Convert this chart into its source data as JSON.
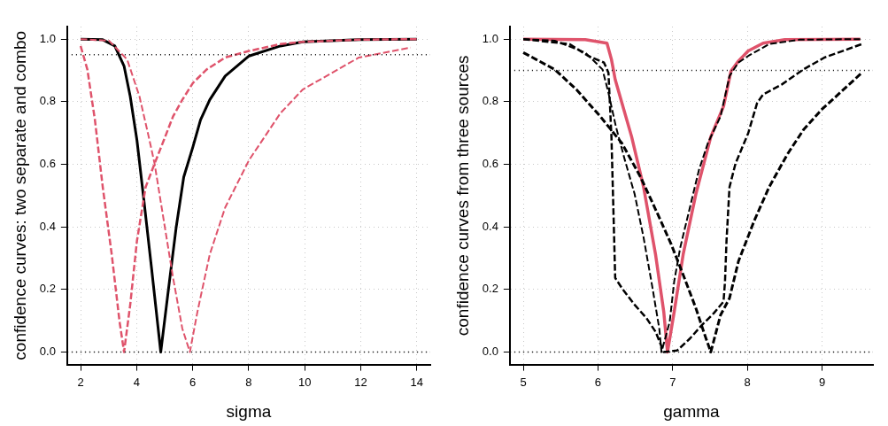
{
  "chart_data": [
    {
      "type": "line",
      "xlabel": "sigma",
      "ylabel": "confidence curves: two separate and combo",
      "xlim": [
        1.52,
        14.48
      ],
      "ylim": [
        -0.04,
        1.04
      ],
      "xticks": [
        2,
        4,
        6,
        8,
        10,
        12,
        14
      ],
      "yticks": [
        {
          "value": 0,
          "label": "0.0"
        },
        {
          "value": 0.2,
          "label": "0.2"
        },
        {
          "value": 0.4,
          "label": "0.4"
        },
        {
          "value": 0.6,
          "label": "0.6"
        },
        {
          "value": 0.8,
          "label": "0.8"
        },
        {
          "value": 1,
          "label": "1.0"
        }
      ],
      "grid": true,
      "ref_lines": [
        {
          "axis": "y",
          "value": 0.95,
          "color": "#000000",
          "line_style": "dotted"
        },
        {
          "axis": "y",
          "value": 0,
          "color": "#000000",
          "line_style": "dotted"
        }
      ],
      "series": [
        {
          "color": "#000000",
          "line_style": "solid",
          "x": [
            2,
            2.79,
            3.22,
            3.55,
            3.77,
            4.01,
            4.26,
            4.53,
            4.86,
            5.14,
            5.41,
            5.68,
            6.01,
            6.28,
            6.61,
            7.16,
            8.01,
            9.13,
            9.93,
            11.93,
            14
          ],
          "values": [
            1,
            0.998,
            0.978,
            0.914,
            0.817,
            0.677,
            0.484,
            0.269,
            0,
            0.204,
            0.398,
            0.559,
            0.656,
            0.742,
            0.806,
            0.882,
            0.946,
            0.978,
            0.991,
            0.998,
            1
          ]
        },
        {
          "color": "#df536b",
          "line_style": "dashed",
          "x": [
            2,
            2.24,
            2.51,
            2.79,
            3.11,
            3.39,
            3.55,
            3.77,
            4.01,
            4.32,
            4.64,
            4.97,
            5.3,
            5.63,
            6.01,
            6.5,
            7.16,
            8.01,
            9.13,
            9.93,
            11.93,
            14
          ],
          "values": [
            0.978,
            0.903,
            0.742,
            0.527,
            0.312,
            0.097,
            0,
            0.151,
            0.355,
            0.527,
            0.602,
            0.677,
            0.753,
            0.806,
            0.86,
            0.903,
            0.941,
            0.962,
            0.984,
            0.991,
            0.998,
            1
          ]
        },
        {
          "color": "#df536b",
          "line_style": "dashed",
          "x": [
            2,
            3.01,
            3.66,
            4.1,
            4.43,
            4.64,
            4.97,
            5.3,
            5.63,
            5.9,
            6.17,
            6.61,
            7.16,
            8.01,
            9.13,
            9.93,
            11.93,
            13.78
          ],
          "values": [
            1,
            0.995,
            0.935,
            0.817,
            0.688,
            0.602,
            0.419,
            0.237,
            0.075,
            0,
            0.129,
            0.312,
            0.462,
            0.613,
            0.763,
            0.839,
            0.941,
            0.973
          ]
        }
      ]
    },
    {
      "type": "line",
      "xlabel": "gamma",
      "ylabel": "confidence curves from three sources",
      "xlim": [
        4.82,
        9.68
      ],
      "ylim": [
        -0.04,
        1.04
      ],
      "xticks": [
        5,
        6,
        7,
        8,
        9
      ],
      "yticks": [
        {
          "value": 0,
          "label": "0.0"
        },
        {
          "value": 0.2,
          "label": "0.2"
        },
        {
          "value": 0.4,
          "label": "0.4"
        },
        {
          "value": 0.6,
          "label": "0.6"
        },
        {
          "value": 0.8,
          "label": "0.8"
        },
        {
          "value": 1,
          "label": "1.0"
        }
      ],
      "grid": true,
      "ref_lines": [
        {
          "axis": "y",
          "value": 0.9,
          "color": "#000000",
          "line_style": "dotted"
        },
        {
          "axis": "y",
          "value": 0,
          "color": "#000000",
          "line_style": "dotted"
        }
      ],
      "series": [
        {
          "color": "#df536b",
          "line_style": "solid",
          "x": [
            5,
            5.83,
            6.12,
            6.18,
            6.23,
            6.32,
            6.45,
            6.61,
            6.77,
            6.88,
            6.93,
            7.02,
            7.14,
            7.31,
            7.51,
            7.68,
            7.78,
            7.88,
            8.01,
            8.21,
            8.5,
            9.51
          ],
          "values": [
            1,
            0.998,
            0.987,
            0.935,
            0.871,
            0.796,
            0.688,
            0.527,
            0.312,
            0.129,
            0,
            0.129,
            0.312,
            0.505,
            0.688,
            0.785,
            0.898,
            0.93,
            0.962,
            0.987,
            0.998,
            1
          ]
        },
        {
          "color": "#000000",
          "line_style": "dashed",
          "x": [
            5,
            5.42,
            5.71,
            6.03,
            6.32,
            6.57,
            6.82,
            6.98,
            7.14,
            7.31,
            7.43,
            7.51,
            7.64,
            7.76,
            7.88,
            8.09,
            8.29,
            8.54,
            8.75,
            8.99,
            9.53
          ],
          "values": [
            0.957,
            0.903,
            0.839,
            0.753,
            0.667,
            0.559,
            0.43,
            0.344,
            0.247,
            0.14,
            0.054,
            0,
            0.118,
            0.172,
            0.29,
            0.419,
            0.527,
            0.634,
            0.71,
            0.774,
            0.892
          ]
        },
        {
          "color": "#000000",
          "line_style": "dashed",
          "x": [
            5,
            5.62,
            5.87,
            6.08,
            6.14,
            6.18,
            6.21,
            6.23,
            6.32,
            6.49,
            6.65,
            6.77,
            6.88,
            7.06,
            7.23,
            7.39,
            7.55,
            7.68,
            7.7,
            7.72,
            7.76,
            7.84,
            8.01,
            8.13,
            8.21,
            8.46,
            8.75,
            9.03,
            9.53
          ],
          "values": [
            1,
            0.984,
            0.946,
            0.925,
            0.892,
            0.688,
            0.419,
            0.237,
            0.204,
            0.151,
            0.108,
            0.065,
            0,
            0.005,
            0.043,
            0.086,
            0.124,
            0.161,
            0.226,
            0.355,
            0.527,
            0.602,
            0.699,
            0.796,
            0.823,
            0.855,
            0.903,
            0.941,
            0.984
          ]
        },
        {
          "color": "#000000",
          "line_style": "dashed",
          "x": [
            5,
            5.42,
            5.83,
            6.06,
            6.14,
            6.24,
            6.36,
            6.49,
            6.61,
            6.73,
            6.82,
            6.85,
            6.96,
            7.02,
            7.1,
            7.23,
            7.35,
            7.47,
            7.64,
            7.76,
            7.88,
            8.01,
            8.29,
            8.7,
            9.51
          ],
          "values": [
            1,
            0.995,
            0.957,
            0.903,
            0.828,
            0.72,
            0.613,
            0.505,
            0.366,
            0.204,
            0.075,
            0,
            0.097,
            0.226,
            0.333,
            0.462,
            0.581,
            0.667,
            0.753,
            0.882,
            0.925,
            0.946,
            0.984,
            0.998,
            1
          ]
        }
      ]
    }
  ]
}
